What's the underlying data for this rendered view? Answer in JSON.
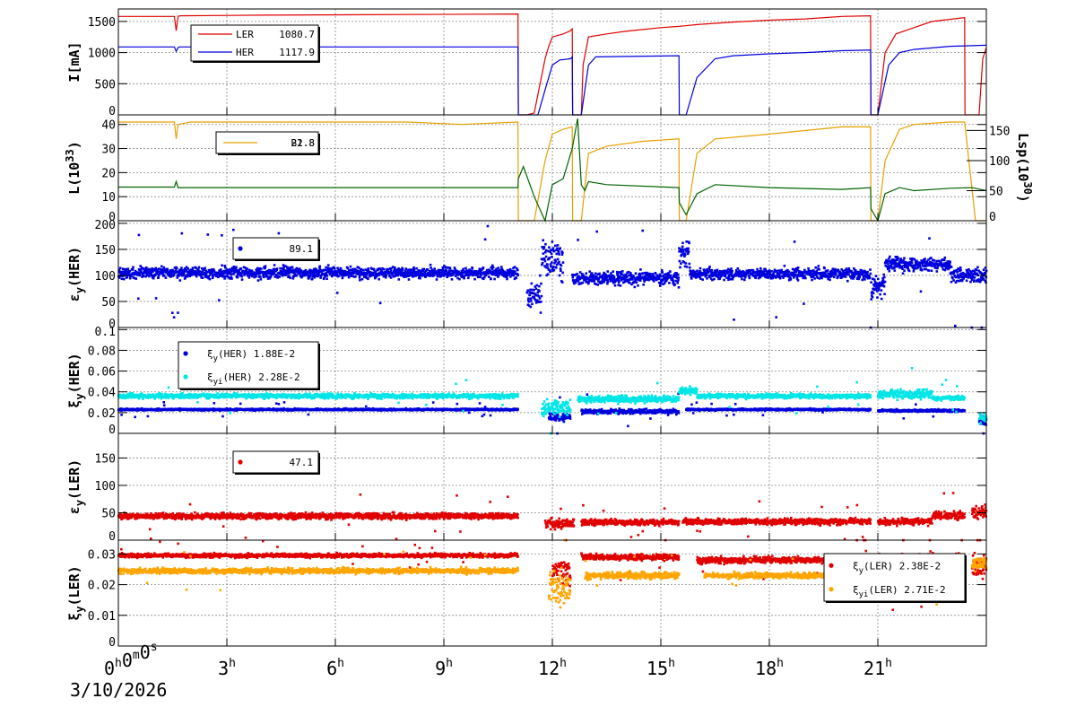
{
  "footer": {
    "date": "3/10/2026"
  },
  "colors": {
    "ler": "#e00000",
    "her": "#0000dd",
    "lum": "#e8a000",
    "lsp": "#006400",
    "cyan": "#00e5e5",
    "orange": "#ffa500",
    "grid": "#888888"
  },
  "x_axis": {
    "range_hours": [
      0,
      24
    ],
    "ticks": [
      {
        "hour": 0,
        "main": "0",
        "label_parts": [
          [
            "0",
            "h"
          ],
          [
            "0",
            "m"
          ],
          [
            "0",
            "s"
          ]
        ]
      },
      {
        "hour": 3,
        "label_parts": [
          [
            "3",
            "h"
          ]
        ]
      },
      {
        "hour": 6,
        "label_parts": [
          [
            "6",
            "h"
          ]
        ]
      },
      {
        "hour": 9,
        "label_parts": [
          [
            "9",
            "h"
          ]
        ]
      },
      {
        "hour": 12,
        "label_parts": [
          [
            "12",
            "h"
          ]
        ]
      },
      {
        "hour": 15,
        "label_parts": [
          [
            "15",
            "h"
          ]
        ]
      },
      {
        "hour": 18,
        "label_parts": [
          [
            "18",
            "h"
          ]
        ]
      },
      {
        "hour": 21,
        "label_parts": [
          [
            "21",
            "h"
          ]
        ]
      }
    ]
  },
  "chart_data": [
    {
      "type": "line",
      "ylabel": "I[mA]",
      "ylim": [
        0,
        1700
      ],
      "yticks": [
        "0",
        "500",
        "1000",
        "1500"
      ],
      "ytick_values": [
        0,
        500,
        1000,
        1500
      ],
      "legend": [
        {
          "name": "LER",
          "value": "1080.7",
          "color": "#e00000"
        },
        {
          "name": "HER",
          "value": "1117.9",
          "color": "#0000dd"
        }
      ],
      "series": [
        {
          "name": "LER",
          "color": "#e00000",
          "x": [
            0,
            1.55,
            1.6,
            1.65,
            1.7,
            4,
            11.05,
            11.06,
            11.3,
            11.5,
            11.8,
            11.9,
            12.0,
            12.3,
            12.5,
            12.55,
            12.56,
            12.8,
            12.85,
            13.0,
            13.5,
            14,
            14.5,
            15,
            15.5,
            16,
            17,
            18,
            19,
            20,
            20.8,
            20.81,
            21.0,
            21.2,
            21.5,
            22,
            22.5,
            23.4,
            23.41,
            23.8,
            23.9,
            24
          ],
          "y": [
            1580,
            1580,
            1350,
            1580,
            1590,
            1600,
            1620,
            0,
            0,
            30,
            900,
            1100,
            1250,
            1300,
            1350,
            1380,
            0,
            0,
            800,
            1250,
            1300,
            1340,
            1370,
            1400,
            1420,
            1450,
            1490,
            1520,
            1540,
            1580,
            1590,
            0,
            0,
            1000,
            1300,
            1400,
            1500,
            1560,
            0,
            0,
            900,
            1080
          ]
        },
        {
          "name": "HER",
          "color": "#0000dd",
          "x": [
            0,
            1.55,
            1.6,
            1.65,
            1.7,
            11.05,
            11.06,
            11.6,
            11.8,
            12.0,
            12.2,
            12.5,
            12.55,
            12.56,
            12.8,
            13.0,
            13.2,
            15.5,
            15.51,
            15.7,
            16.0,
            16.5,
            17,
            18,
            19,
            20,
            20.8,
            20.81,
            21.0,
            21.3,
            21.6,
            22,
            23,
            24
          ],
          "y": [
            1090,
            1090,
            1020,
            1080,
            1090,
            1090,
            0,
            0,
            400,
            800,
            880,
            900,
            930,
            0,
            0,
            800,
            930,
            950,
            0,
            0,
            600,
            900,
            950,
            980,
            1000,
            1030,
            1040,
            0,
            0,
            800,
            1000,
            1050,
            1100,
            1118
          ]
        }
      ]
    },
    {
      "type": "line",
      "ylabel": "L(10^33)",
      "ylabel_main": "L(10",
      "ylabel_sup": "33",
      "ylabel_end": ")",
      "y2label_main": "Lsp(10",
      "y2label_sup": "30",
      "y2label_end": ")",
      "ylim": [
        0,
        44
      ],
      "yticks": [
        "0",
        "10",
        "20",
        "30",
        "40"
      ],
      "ytick_values": [
        0,
        10,
        20,
        30,
        40
      ],
      "y2lim": [
        0,
        176
      ],
      "y2ticks": [
        "0",
        "50",
        "100",
        "150"
      ],
      "y2tick_values": [
        0,
        50,
        100,
        150
      ],
      "legend": [
        {
          "name": "B2.8",
          "overlay": "21.8",
          "value": "",
          "color": "#e8a000"
        }
      ],
      "series": [
        {
          "name": "L",
          "color": "#e8a000",
          "x": [
            0,
            1.55,
            1.6,
            1.65,
            2,
            5,
            8,
            9.5,
            11.05,
            11.06,
            11.5,
            11.8,
            12.0,
            12.3,
            12.55,
            12.56,
            12.8,
            13.0,
            13.5,
            14.5,
            15.5,
            15.51,
            15.7,
            16.0,
            16.5,
            18,
            20,
            20.8,
            20.81,
            21.0,
            21.2,
            21.6,
            22,
            23,
            23.4,
            23.7,
            24
          ],
          "y": [
            41,
            41,
            34,
            40,
            41,
            41,
            41,
            40,
            41,
            0,
            0,
            25,
            36,
            38,
            39,
            0,
            0,
            28,
            31,
            33,
            34,
            0,
            0,
            28,
            34,
            36,
            39,
            39,
            0,
            0,
            25,
            38,
            40,
            41,
            41,
            0,
            0
          ]
        },
        {
          "name": "Lsp",
          "color": "#006400",
          "x": [
            0,
            1.55,
            1.6,
            1.65,
            2,
            5,
            9,
            11.05,
            11.06,
            11.2,
            11.5,
            11.8,
            12.0,
            12.3,
            12.55,
            12.7,
            12.8,
            12.9,
            13.0,
            13.5,
            15.5,
            15.51,
            15.7,
            16.0,
            16.5,
            18,
            20,
            20.8,
            20.81,
            21.0,
            21.2,
            21.6,
            22,
            23,
            23.6,
            24
          ],
          "y": [
            56,
            56,
            65,
            55,
            55,
            55,
            55,
            55,
            70,
            90,
            40,
            0,
            60,
            70,
            120,
            170,
            60,
            50,
            65,
            60,
            55,
            30,
            10,
            45,
            60,
            55,
            52,
            55,
            20,
            0,
            45,
            55,
            50,
            54,
            55,
            50
          ]
        }
      ]
    },
    {
      "type": "scatter",
      "ylabel": "εy(HER)",
      "ylabel_main": "ε",
      "ylabel_sub": "y",
      "ylabel_end": "(HER)",
      "ylim": [
        0,
        205
      ],
      "yticks": [
        "0",
        "50",
        "100",
        "150",
        "200"
      ],
      "ytick_values": [
        0,
        50,
        100,
        150,
        200
      ],
      "legend": [
        {
          "name": "",
          "value": "89.1",
          "color": "#0000dd"
        }
      ],
      "series": [
        {
          "name": "",
          "color": "#0000dd",
          "segments": [
            [
              0,
              11.05,
              105,
              10
            ],
            [
              11.3,
              11.7,
              60,
              25
            ],
            [
              11.7,
              12.3,
              130,
              35
            ],
            [
              12.55,
              15.5,
              95,
              12
            ],
            [
              15.5,
              15.8,
              140,
              30
            ],
            [
              15.8,
              20.8,
              103,
              10
            ],
            [
              20.8,
              21.2,
              80,
              25
            ],
            [
              21.2,
              23.0,
              122,
              12
            ],
            [
              23.0,
              24,
              100,
              14
            ]
          ]
        }
      ]
    },
    {
      "type": "scatter",
      "ylabel": "ξy(HER)",
      "ylabel_main": "ξ",
      "ylabel_sub": "y",
      "ylabel_end": "(HER)",
      "ylim": [
        0,
        0.102
      ],
      "yticks": [
        "0",
        "0.02",
        "0.04",
        "0.06",
        "0.08",
        "0.1"
      ],
      "ytick_values": [
        0,
        0.02,
        0.04,
        0.06,
        0.08,
        0.1
      ],
      "legend": [
        {
          "name": "ξy(HER)",
          "name_main": "ξ",
          "name_sub": "y",
          "name_end": "(HER)",
          "value": "1.88E-2",
          "color": "#0000dd"
        },
        {
          "name": "ξyi(HER)",
          "name_main": "ξ",
          "name_sub": "yi",
          "name_end": "(HER)",
          "value": "2.28E-2",
          "color": "#00e5e5"
        }
      ],
      "series": [
        {
          "name": "ξy(HER)",
          "color": "#0000dd",
          "segments": [
            [
              0,
              11.05,
              0.023,
              0.0008
            ],
            [
              11.9,
              12.5,
              0.016,
              0.004
            ],
            [
              12.8,
              15.5,
              0.021,
              0.002
            ],
            [
              15.7,
              20.8,
              0.023,
              0.0008
            ],
            [
              21.0,
              23.4,
              0.022,
              0.001
            ],
            [
              23.8,
              24,
              0.012,
              0.004
            ]
          ]
        },
        {
          "name": "ξyi(HER)",
          "color": "#00e5e5",
          "segments": [
            [
              0,
              11.05,
              0.036,
              0.002
            ],
            [
              11.7,
              12.5,
              0.025,
              0.006
            ],
            [
              12.7,
              15.5,
              0.033,
              0.003
            ],
            [
              15.5,
              16.0,
              0.041,
              0.003
            ],
            [
              16.0,
              20.8,
              0.036,
              0.002
            ],
            [
              21.0,
              22.5,
              0.038,
              0.004
            ],
            [
              22.5,
              23.4,
              0.034,
              0.002
            ],
            [
              23.8,
              24,
              0.015,
              0.006
            ]
          ]
        }
      ]
    },
    {
      "type": "scatter",
      "ylabel": "εy(LER)",
      "ylabel_main": "ε",
      "ylabel_sub": "y",
      "ylabel_end": "(LER)",
      "ylim": [
        0,
        195
      ],
      "yticks": [
        "0",
        "50",
        "100",
        "150"
      ],
      "ytick_values": [
        0,
        50,
        100,
        150
      ],
      "legend": [
        {
          "name": "",
          "value": "47.1",
          "color": "#e00000"
        }
      ],
      "series": [
        {
          "name": "",
          "color": "#e00000",
          "segments": [
            [
              0,
              11.05,
              44,
              5
            ],
            [
              11.8,
              12.6,
              30,
              8
            ],
            [
              12.8,
              15.5,
              33,
              5
            ],
            [
              15.6,
              20.8,
              34,
              5
            ],
            [
              21.0,
              22.5,
              34,
              6
            ],
            [
              22.5,
              23.4,
              45,
              7
            ],
            [
              23.6,
              24,
              50,
              12
            ]
          ]
        }
      ]
    },
    {
      "type": "scatter",
      "ylabel": "ξy(LER)",
      "ylabel_main": "ξ",
      "ylabel_sub": "y",
      "ylabel_end": "(LER)",
      "ylim": [
        0,
        0.0345
      ],
      "yticks": [
        "0",
        "0.01",
        "0.02",
        "0.03"
      ],
      "ytick_values": [
        0,
        0.01,
        0.02,
        0.03
      ],
      "legend": [
        {
          "name": "ξy(LER)",
          "name_main": "ξ",
          "name_sub": "y",
          "name_end": "(LER)",
          "value": "2.38E-2",
          "color": "#e00000"
        },
        {
          "name": "ξyi(LER)",
          "name_main": "ξ",
          "name_sub": "yi",
          "name_end": "(LER)",
          "value": "2.71E-2",
          "color": "#ffa500"
        }
      ],
      "series": [
        {
          "name": "ξy(LER)",
          "color": "#e00000",
          "segments": [
            [
              0,
              11.05,
              0.0295,
              0.0006
            ],
            [
              12.0,
              12.5,
              0.024,
              0.005
            ],
            [
              12.8,
              15.5,
              0.029,
              0.001
            ],
            [
              16.0,
              20.8,
              0.028,
              0.001
            ],
            [
              21.0,
              23.4,
              0.028,
              0.002
            ],
            [
              23.6,
              24,
              0.026,
              0.004
            ]
          ]
        },
        {
          "name": "ξyi(LER)",
          "color": "#ffa500",
          "segments": [
            [
              0,
              11.05,
              0.0245,
              0.0008
            ],
            [
              11.9,
              12.5,
              0.019,
              0.006
            ],
            [
              12.9,
              15.5,
              0.023,
              0.001
            ],
            [
              16.2,
              20.8,
              0.023,
              0.0008
            ],
            [
              21.0,
              23.4,
              0.024,
              0.002
            ],
            [
              23.6,
              24,
              0.027,
              0.002
            ]
          ]
        }
      ]
    }
  ]
}
